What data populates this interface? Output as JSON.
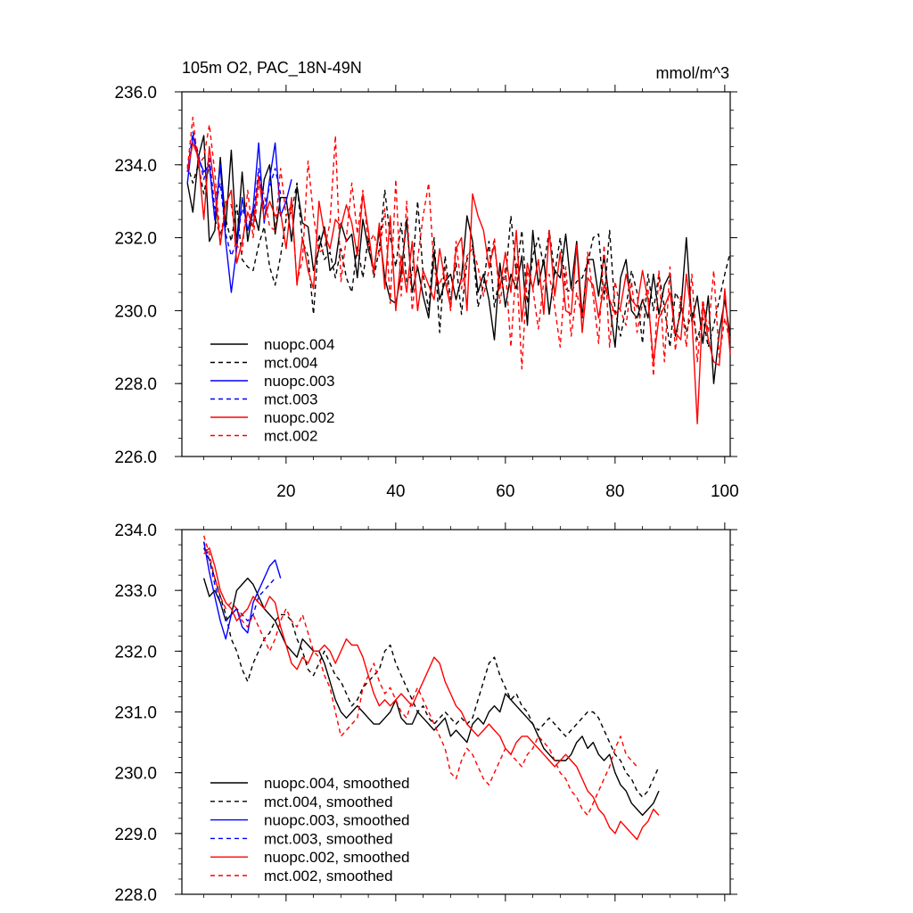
{
  "figure": {
    "title_left": "105m O2, PAC_18N-49N",
    "title_right": "mmol/m^3"
  },
  "colors": {
    "black": "#000000",
    "blue": "#0000ff",
    "red": "#ff0000"
  },
  "chart_data": [
    {
      "type": "line",
      "title": "105m O2, PAC_18N-49N",
      "units": "mmol/m^3",
      "xlim": [
        1,
        101
      ],
      "ylim": [
        226.0,
        236.0
      ],
      "x_ticks": [
        20,
        40,
        60,
        80,
        100
      ],
      "x_tick_labels": [
        "20",
        "40",
        "60",
        "80",
        "100"
      ],
      "y_ticks": [
        226.0,
        228.0,
        230.0,
        232.0,
        234.0,
        236.0
      ],
      "y_tick_labels": [
        "226.0",
        "228.0",
        "230.0",
        "232.0",
        "234.0",
        "236.0"
      ],
      "legend_position": "bottom-left",
      "series": [
        {
          "name": "nuopc.004",
          "color": "#000000",
          "dash": "solid",
          "x_start": 2,
          "values": [
            233.5,
            232.7,
            234.2,
            234.8,
            231.9,
            232.2,
            234.2,
            232.3,
            234.4,
            231.8,
            233.8,
            231.9,
            232.8,
            232.2,
            233.6,
            234.0,
            232.1,
            233.1,
            233.1,
            231.9,
            233.4,
            232.4,
            232.3,
            231.1,
            231.7,
            232.3,
            231.1,
            231.3,
            232.4,
            231.9,
            232.1,
            230.9,
            232.5,
            231.7,
            231.1,
            232.2,
            230.9,
            230.3,
            230.2,
            231.0,
            232.5,
            230.5,
            231.2,
            230.4,
            229.8,
            231.6,
            230.3,
            230.8,
            231.0,
            230.3,
            230.9,
            232.6,
            231.9,
            230.5,
            231.0,
            230.3,
            229.2,
            231.3,
            230.1,
            231.0,
            230.6,
            231.5,
            229.6,
            232.2,
            230.7,
            231.4,
            229.9,
            231.1,
            230.9,
            232.1,
            230.6,
            231.9,
            229.8,
            231.4,
            231.4,
            230.4,
            231.5,
            230.2,
            229.0,
            230.9,
            231.4,
            230.0,
            229.8,
            230.3,
            229.8,
            231.0,
            229.9,
            230.7,
            231.0,
            229.3,
            230.0,
            232.0,
            229.7,
            230.4,
            229.1,
            230.4,
            228.0,
            229.4,
            230.3,
            229.3
          ]
        },
        {
          "name": "mct.004",
          "color": "#000000",
          "dash": "dashed",
          "x_start": 2,
          "values": [
            234.0,
            233.5,
            234.0,
            233.2,
            234.0,
            232.5,
            232.1,
            232.5,
            231.9,
            232.9,
            231.4,
            231.2,
            231.1,
            231.8,
            232.3,
            231.2,
            230.7,
            231.5,
            232.5,
            232.7,
            233.5,
            231.9,
            231.5,
            229.9,
            232.1,
            231.4,
            231.6,
            230.9,
            231.7,
            230.9,
            230.5,
            231.8,
            230.9,
            232.0,
            230.9,
            231.7,
            233.3,
            232.0,
            231.2,
            232.4,
            230.8,
            231.0,
            233.0,
            231.0,
            230.0,
            232.0,
            229.4,
            231.5,
            230.3,
            231.3,
            229.9,
            231.4,
            231.8,
            230.1,
            230.7,
            231.9,
            230.1,
            231.0,
            230.8,
            232.6,
            231.0,
            232.2,
            230.2,
            231.5,
            232.0,
            231.2,
            232.2,
            231.0,
            232.0,
            230.6,
            230.5,
            230.8,
            230.9,
            231.3,
            232.0,
            232.1,
            230.3,
            232.2,
            230.0,
            229.3,
            230.1,
            231.1,
            230.5,
            229.1,
            231.0,
            230.0,
            231.0,
            230.1,
            229.0,
            230.5,
            230.2,
            229.4,
            230.0,
            229.2,
            229.8,
            229.0,
            229.6,
            230.3,
            231.0,
            231.6
          ]
        },
        {
          "name": "nuopc.003",
          "color": "#0000ff",
          "dash": "solid",
          "x_start": 2,
          "values": [
            233.5,
            234.8,
            234.2,
            233.8,
            234.0,
            232.5,
            234.0,
            231.9,
            230.5,
            231.7,
            233.1,
            232.2,
            232.8,
            234.6,
            232.4,
            233.6,
            234.6,
            232.6,
            233.0,
            233.6
          ]
        },
        {
          "name": "mct.003",
          "color": "#0000ff",
          "dash": "dashed",
          "x_start": 2,
          "values": [
            233.8,
            234.9,
            234.3,
            233.6,
            234.2,
            232.8,
            233.5,
            232.1,
            231.5,
            231.9,
            232.8,
            232.4,
            232.5,
            233.9,
            232.8,
            233.4,
            233.9,
            233.2
          ]
        },
        {
          "name": "nuopc.002",
          "color": "#ff0000",
          "dash": "solid",
          "x_start": 2,
          "values": [
            233.8,
            234.6,
            234.2,
            232.5,
            234.5,
            233.3,
            231.8,
            232.9,
            233.3,
            231.3,
            231.9,
            232.7,
            232.3,
            233.7,
            232.5,
            233.0,
            232.6,
            232.7,
            231.7,
            233.1,
            230.7,
            232.0,
            231.1,
            230.6,
            233.0,
            232.1,
            231.7,
            232.5,
            232.3,
            232.9,
            232.4,
            231.5,
            233.2,
            232.2,
            231.0,
            232.4,
            230.6,
            232.6,
            230.0,
            231.5,
            230.5,
            231.9,
            230.0,
            231.1,
            230.7,
            230.3,
            231.7,
            230.8,
            230.1,
            231.7,
            232.0,
            230.0,
            233.2,
            232.6,
            232.2,
            231.2,
            231.8,
            230.6,
            231.6,
            230.5,
            232.2,
            229.7,
            231.3,
            230.6,
            231.4,
            229.9,
            232.2,
            230.4,
            231.6,
            230.0,
            229.9,
            231.8,
            229.4,
            230.9,
            230.7,
            229.8,
            230.7,
            230.3,
            229.9,
            230.1,
            231.0,
            230.3,
            230.1,
            231.1,
            230.3,
            228.6,
            229.8,
            230.1,
            230.5,
            229.4,
            229.2,
            231.0,
            229.8,
            226.9,
            230.2,
            229.2,
            228.6,
            228.5,
            230.6,
            228.8
          ]
        },
        {
          "name": "mct.002",
          "color": "#ff0000",
          "dash": "dashed",
          "x_start": 2,
          "values": [
            233.9,
            235.3,
            234.0,
            234.2,
            235.1,
            233.8,
            231.9,
            233.0,
            232.9,
            231.8,
            231.6,
            233.3,
            232.0,
            233.4,
            233.2,
            232.3,
            232.2,
            233.9,
            232.6,
            232.9,
            230.8,
            231.4,
            234.1,
            232.6,
            231.6,
            231.7,
            232.4,
            234.8,
            230.8,
            232.0,
            233.5,
            232.1,
            233.3,
            231.8,
            232.1,
            231.5,
            232.8,
            230.2,
            233.6,
            230.4,
            233.0,
            230.0,
            231.4,
            232.6,
            233.5,
            231.1,
            230.7,
            231.2,
            230.0,
            231.9,
            230.6,
            231.5,
            231.7,
            231.2,
            230.4,
            231.1,
            232.0,
            230.2,
            231.2,
            229.0,
            231.3,
            228.4,
            231.1,
            230.6,
            229.5,
            230.8,
            231.0,
            230.1,
            229.0,
            231.2,
            229.3,
            230.5,
            229.8,
            231.6,
            230.4,
            229.1,
            231.8,
            229.0,
            230.8,
            230.0,
            229.6,
            230.8,
            229.4,
            230.2,
            230.6,
            228.2,
            231.1,
            228.6,
            231.2,
            228.9,
            230.4,
            229.0,
            231.0,
            228.6,
            230.3,
            229.4,
            231.1,
            228.7,
            229.8,
            229.1
          ]
        }
      ],
      "legend": [
        "nuopc.004",
        "mct.004",
        "nuopc.003",
        "mct.003",
        "nuopc.002",
        "mct.002"
      ]
    },
    {
      "type": "line",
      "title": "",
      "xlim": [
        1,
        101
      ],
      "ylim": [
        228.0,
        234.0
      ],
      "x_ticks": [
        20,
        40,
        60,
        80,
        100
      ],
      "y_ticks": [
        228.0,
        229.0,
        230.0,
        231.0,
        232.0,
        233.0,
        234.0
      ],
      "y_tick_labels": [
        "228.0",
        "229.0",
        "230.0",
        "231.0",
        "232.0",
        "233.0",
        "234.0"
      ],
      "legend_position": "bottom-left",
      "series": [
        {
          "name": "nuopc.004, smoothed",
          "color": "#000000",
          "dash": "solid",
          "x_start": 5,
          "values": [
            233.2,
            232.9,
            233.0,
            232.8,
            232.5,
            232.6,
            233.0,
            233.1,
            233.2,
            233.1,
            232.9,
            232.7,
            232.6,
            232.5,
            232.3,
            232.1,
            232.0,
            231.9,
            232.2,
            232.1,
            232.0,
            232.0,
            231.8,
            231.5,
            231.2,
            231.0,
            230.9,
            231.0,
            231.1,
            231.0,
            230.9,
            230.8,
            230.8,
            230.9,
            231.0,
            231.2,
            230.9,
            230.8,
            230.8,
            231.0,
            230.9,
            230.8,
            230.7,
            230.8,
            230.9,
            230.6,
            230.7,
            230.6,
            230.5,
            230.8,
            230.9,
            230.8,
            231.0,
            231.1,
            231.0,
            231.3,
            231.2,
            231.1,
            231.0,
            230.9,
            230.8,
            230.6,
            230.4,
            230.3,
            230.2,
            230.2,
            230.2,
            230.3,
            230.5,
            230.6,
            230.4,
            230.5,
            230.3,
            230.2,
            230.3,
            230.0,
            229.8,
            229.7,
            229.5,
            229.4,
            229.3,
            229.4,
            229.5,
            229.7
          ]
        },
        {
          "name": "mct.004, smoothed",
          "color": "#000000",
          "dash": "dashed",
          "x_start": 5,
          "values": [
            233.7,
            233.5,
            233.2,
            232.9,
            232.6,
            232.2,
            232.0,
            231.7,
            231.5,
            231.8,
            232.0,
            232.2,
            232.3,
            232.5,
            232.6,
            232.6,
            232.5,
            232.2,
            232.0,
            231.7,
            231.6,
            231.8,
            232.0,
            231.8,
            231.6,
            231.5,
            231.3,
            231.1,
            231.2,
            231.4,
            231.5,
            231.6,
            231.7,
            232.0,
            232.1,
            231.8,
            231.6,
            231.4,
            231.2,
            231.0,
            231.1,
            230.9,
            230.8,
            230.9,
            231.0,
            230.9,
            230.8,
            230.9,
            230.8,
            230.9,
            231.2,
            231.5,
            231.8,
            231.9,
            231.6,
            231.4,
            231.2,
            231.3,
            231.1,
            231.0,
            230.8,
            230.7,
            230.8,
            230.9,
            230.8,
            230.7,
            230.6,
            230.7,
            230.8,
            230.9,
            231.0,
            231.0,
            230.9,
            230.7,
            230.5,
            230.3,
            230.2,
            230.0,
            229.9,
            229.7,
            229.6,
            229.7,
            229.9,
            230.1
          ]
        },
        {
          "name": "nuopc.003, smoothed",
          "color": "#0000ff",
          "dash": "solid",
          "x_start": 5,
          "values": [
            233.8,
            233.3,
            232.9,
            232.5,
            232.2,
            232.6,
            232.7,
            232.4,
            232.3,
            232.8,
            233.0,
            233.2,
            233.4,
            233.5,
            233.2
          ]
        },
        {
          "name": "mct.003, smoothed",
          "color": "#0000ff",
          "dash": "dashed",
          "x_start": 5,
          "values": [
            233.8,
            233.5,
            233.1,
            232.8,
            232.5,
            232.6,
            232.7,
            232.6,
            232.5,
            232.6,
            232.9,
            233.0,
            233.1,
            233.2
          ]
        },
        {
          "name": "nuopc.002, smoothed",
          "color": "#ff0000",
          "dash": "solid",
          "x_start": 5,
          "values": [
            233.6,
            233.7,
            233.4,
            233.0,
            232.8,
            232.7,
            232.5,
            232.6,
            232.7,
            232.9,
            232.8,
            232.7,
            232.9,
            232.8,
            232.4,
            232.1,
            231.8,
            231.7,
            231.9,
            231.8,
            232.0,
            232.0,
            232.1,
            232.0,
            231.8,
            232.0,
            232.2,
            232.1,
            232.1,
            231.9,
            231.6,
            231.3,
            231.1,
            231.2,
            231.1,
            231.2,
            231.3,
            231.2,
            231.1,
            231.3,
            231.5,
            231.7,
            231.9,
            231.8,
            231.5,
            231.3,
            231.1,
            231.0,
            230.8,
            230.7,
            230.6,
            230.7,
            230.8,
            230.7,
            230.6,
            230.4,
            230.3,
            230.5,
            230.6,
            230.6,
            230.5,
            230.4,
            230.3,
            230.2,
            230.1,
            230.2,
            230.3,
            230.2,
            230.1,
            229.9,
            229.7,
            229.6,
            229.4,
            229.3,
            229.1,
            229.0,
            229.2,
            229.1,
            229.0,
            228.9,
            229.1,
            229.2,
            229.4,
            229.3
          ]
        },
        {
          "name": "mct.002, smoothed",
          "color": "#ff0000",
          "dash": "dashed",
          "x_start": 5,
          "values": [
            233.9,
            233.6,
            233.2,
            232.9,
            232.7,
            232.8,
            232.7,
            232.5,
            232.4,
            232.6,
            232.4,
            232.2,
            232.0,
            232.2,
            232.5,
            232.7,
            232.5,
            232.4,
            232.6,
            232.3,
            232.0,
            231.9,
            231.6,
            231.4,
            231.0,
            230.6,
            230.7,
            230.8,
            230.9,
            231.4,
            231.6,
            231.8,
            231.5,
            231.3,
            231.4,
            231.2,
            231.0,
            230.9,
            231.2,
            231.4,
            231.2,
            231.0,
            230.8,
            230.6,
            230.4,
            230.0,
            229.9,
            230.2,
            230.4,
            230.3,
            230.1,
            229.9,
            229.8,
            230.0,
            230.2,
            230.4,
            230.3,
            230.2,
            230.1,
            230.3,
            230.4,
            230.6,
            230.5,
            230.4,
            230.2,
            230.0,
            229.9,
            229.7,
            229.6,
            229.4,
            229.3,
            229.5,
            229.7,
            229.9,
            230.1,
            230.4,
            230.6,
            230.3,
            230.2,
            230.1
          ]
        }
      ],
      "legend": [
        "nuopc.004, smoothed",
        "mct.004, smoothed",
        "nuopc.003, smoothed",
        "mct.003, smoothed",
        "nuopc.002, smoothed",
        "mct.002, smoothed"
      ]
    }
  ]
}
